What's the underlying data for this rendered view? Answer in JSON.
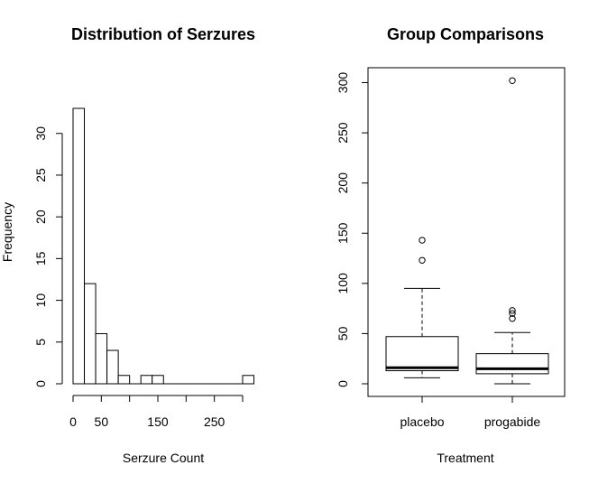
{
  "chart_data": [
    {
      "type": "bar",
      "title": "Distribution of Serzures",
      "xlabel": "Serzure Count",
      "ylabel": "Frequency",
      "bin_width": 20,
      "bins": [
        {
          "start": 0,
          "end": 20,
          "count": 33
        },
        {
          "start": 20,
          "end": 40,
          "count": 12
        },
        {
          "start": 40,
          "end": 60,
          "count": 6
        },
        {
          "start": 60,
          "end": 80,
          "count": 4
        },
        {
          "start": 80,
          "end": 100,
          "count": 1
        },
        {
          "start": 100,
          "end": 120,
          "count": 0
        },
        {
          "start": 120,
          "end": 140,
          "count": 1
        },
        {
          "start": 140,
          "end": 160,
          "count": 1
        },
        {
          "start": 160,
          "end": 180,
          "count": 0
        },
        {
          "start": 180,
          "end": 200,
          "count": 0
        },
        {
          "start": 200,
          "end": 220,
          "count": 0
        },
        {
          "start": 220,
          "end": 240,
          "count": 0
        },
        {
          "start": 240,
          "end": 260,
          "count": 0
        },
        {
          "start": 260,
          "end": 280,
          "count": 0
        },
        {
          "start": 280,
          "end": 300,
          "count": 0
        },
        {
          "start": 300,
          "end": 320,
          "count": 1
        }
      ],
      "x_ticks": [
        "0",
        "50",
        "150",
        "250"
      ],
      "x_tick_values": [
        0,
        50,
        150,
        250
      ],
      "y_ticks": [
        "0",
        "5",
        "10",
        "15",
        "20",
        "25",
        "30"
      ],
      "y_tick_values": [
        0,
        5,
        10,
        15,
        20,
        25,
        30
      ],
      "xlim": [
        0,
        320
      ],
      "ylim": [
        0,
        33
      ],
      "grid": false,
      "legend": "none"
    },
    {
      "type": "box",
      "title": "Group Comparisons",
      "xlabel": "Treatment",
      "ylabel": "",
      "categories": [
        "placebo",
        "progabide"
      ],
      "boxes": [
        {
          "name": "placebo",
          "lower_whisker": 6,
          "q1": 13,
          "median": 16,
          "q3": 47,
          "upper_whisker": 95,
          "outliers": [
            123,
            143
          ]
        },
        {
          "name": "progabide",
          "lower_whisker": 0,
          "q1": 10,
          "median": 15,
          "q3": 30,
          "upper_whisker": 51,
          "outliers": [
            65,
            70,
            73,
            302
          ]
        }
      ],
      "y_ticks": [
        "0",
        "50",
        "100",
        "150",
        "200",
        "250",
        "300"
      ],
      "y_tick_values": [
        0,
        50,
        100,
        150,
        200,
        250,
        300
      ],
      "ylim": [
        0,
        302
      ],
      "grid": false,
      "legend": "none"
    }
  ]
}
